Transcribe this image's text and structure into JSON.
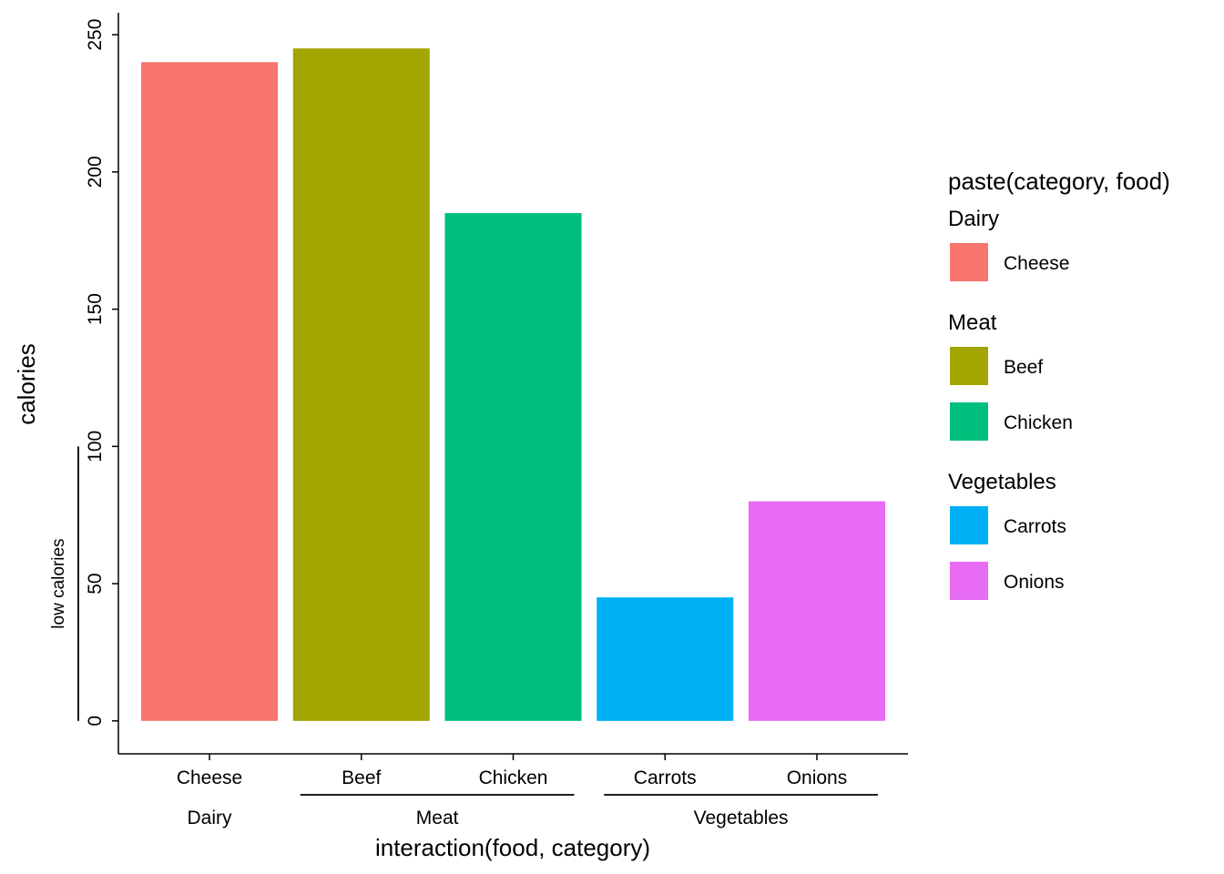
{
  "chart_data": {
    "type": "bar",
    "title": "",
    "xlabel": "interaction(food, category)",
    "ylabel": "calories",
    "ylim": [
      -12,
      258
    ],
    "yticks": [
      0,
      50,
      100,
      150,
      200,
      250
    ],
    "grid": false,
    "categories": [
      "Cheese",
      "Beef",
      "Chicken",
      "Carrots",
      "Onions"
    ],
    "groups": [
      {
        "label": "Dairy",
        "members": [
          "Cheese"
        ]
      },
      {
        "label": "Meat",
        "members": [
          "Beef",
          "Chicken"
        ]
      },
      {
        "label": "Vegetables",
        "members": [
          "Carrots",
          "Onions"
        ]
      }
    ],
    "values": [
      240,
      245,
      185,
      45,
      80
    ],
    "colors": [
      "#F8766D",
      "#A3A500",
      "#00BF7D",
      "#00B0F6",
      "#E76BF3"
    ],
    "y_bracket": {
      "label": "low calories",
      "range": [
        0,
        100
      ]
    },
    "legend": {
      "title": "paste(category, food)",
      "position": "right",
      "groups": [
        {
          "label": "Dairy",
          "items": [
            {
              "label": "Cheese",
              "color": "#F8766D"
            }
          ]
        },
        {
          "label": "Meat",
          "items": [
            {
              "label": "Beef",
              "color": "#A3A500"
            },
            {
              "label": "Chicken",
              "color": "#00BF7D"
            }
          ]
        },
        {
          "label": "Vegetables",
          "items": [
            {
              "label": "Carrots",
              "color": "#00B0F6"
            },
            {
              "label": "Onions",
              "color": "#E76BF3"
            }
          ]
        }
      ]
    }
  }
}
